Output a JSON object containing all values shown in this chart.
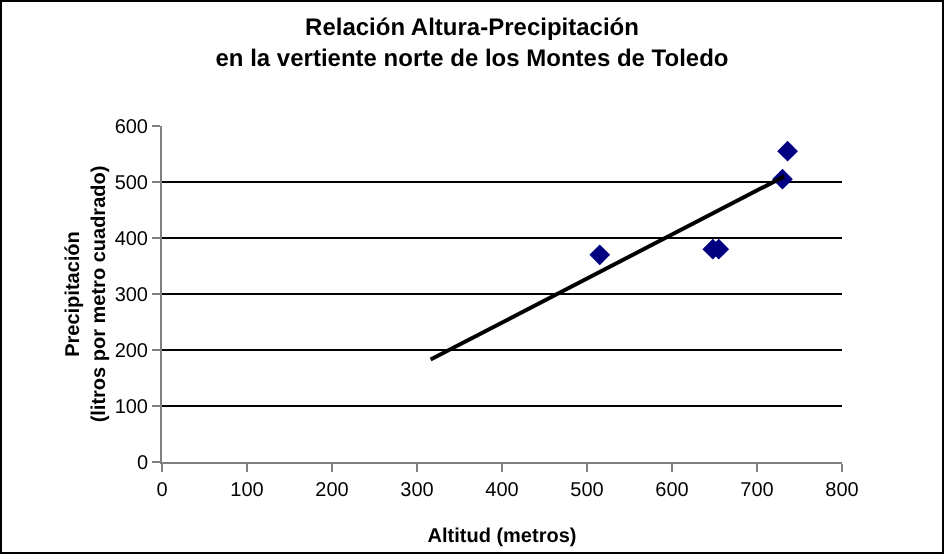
{
  "chart_data": {
    "type": "scatter",
    "title": "Relación Altura-Precipitación\nen la vertiente norte de los Montes de Toledo",
    "xlabel": "Altitud (metros)",
    "ylabel": "Precipitación\n(litros por metro cuadrado)",
    "series": [
      {
        "color": "#000080",
        "x": [
          515,
          648,
          655,
          730,
          736
        ],
        "values": [
          370,
          380,
          380,
          505,
          555
        ],
        "marker": "diamond"
      },
      {
        "type": "line",
        "color": "#000000",
        "x": [
          316,
          732
        ],
        "values": [
          183,
          510
        ],
        "marker": "none"
      }
    ],
    "xlim": [
      0,
      800
    ],
    "xticks": [
      0,
      100,
      200,
      300,
      400,
      500,
      600,
      700,
      800
    ],
    "ylim": [
      0,
      600
    ],
    "yticks": [
      0,
      100,
      200,
      300,
      400,
      500,
      600
    ],
    "grid": "y"
  }
}
